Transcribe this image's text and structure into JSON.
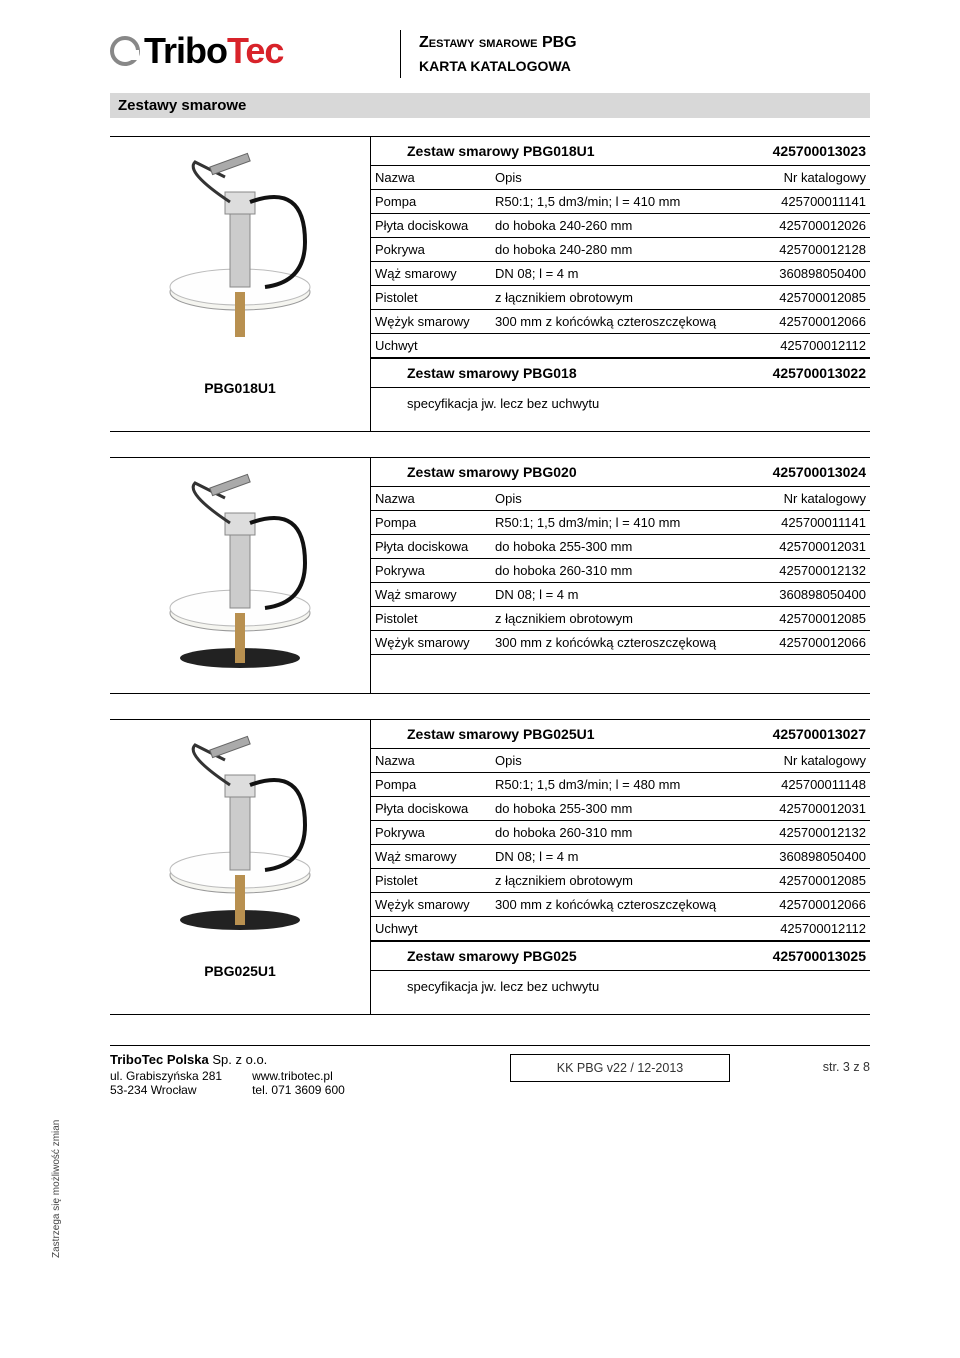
{
  "header": {
    "logo_tribo": "Tribo",
    "logo_tec": "Tec",
    "title_line1": "Zestawy smarowe PBG",
    "title_line2": "KARTA KATALOGOWA"
  },
  "section_title": "Zestawy smarowe",
  "column_headers": {
    "name": "Nazwa",
    "desc": "Opis",
    "catno": "Nr katalogowy"
  },
  "products": [
    {
      "image_label": "PBG018U1",
      "kit_title": "Zestaw smarowy PBG018U1",
      "kit_catno": "425700013023",
      "rows": [
        {
          "name": "Pompa",
          "desc": "R50:1; 1,5 dm3/min; l = 410 mm",
          "catno": "425700011141"
        },
        {
          "name": "Płyta dociskowa",
          "desc": "do hoboka 240-260 mm",
          "catno": "425700012026"
        },
        {
          "name": "Pokrywa",
          "desc": "do hoboka 240-280 mm",
          "catno": "425700012128"
        },
        {
          "name": "Wąż smarowy",
          "desc": "DN 08; l = 4 m",
          "catno": "360898050400"
        },
        {
          "name": "Pistolet",
          "desc": "z łącznikiem obrotowym",
          "catno": "425700012085"
        },
        {
          "name": "Wężyk smarowy",
          "desc": "300 mm z końcówką czteroszczękową",
          "catno": "425700012066"
        },
        {
          "name": "Uchwyt",
          "desc": "",
          "catno": "425700012112"
        }
      ],
      "alt_kit_title": "Zestaw smarowy PBG018",
      "alt_kit_catno": "425700013022",
      "alt_note": "specyfikacja jw. lecz bez uchwytu"
    },
    {
      "image_label": "",
      "kit_title": "Zestaw smarowy PBG020",
      "kit_catno": "425700013024",
      "rows": [
        {
          "name": "Pompa",
          "desc": "R50:1; 1,5 dm3/min; l = 410 mm",
          "catno": "425700011141"
        },
        {
          "name": "Płyta dociskowa",
          "desc": "do hoboka 255-300 mm",
          "catno": "425700012031"
        },
        {
          "name": "Pokrywa",
          "desc": "do hoboka 260-310 mm",
          "catno": "425700012132"
        },
        {
          "name": "Wąż smarowy",
          "desc": "DN 08; l = 4 m",
          "catno": "360898050400"
        },
        {
          "name": "Pistolet",
          "desc": "z łącznikiem obrotowym",
          "catno": "425700012085"
        },
        {
          "name": "Wężyk smarowy",
          "desc": "300 mm z końcówką czteroszczękową",
          "catno": "425700012066"
        }
      ]
    },
    {
      "image_label": "PBG025U1",
      "kit_title": "Zestaw smarowy PBG025U1",
      "kit_catno": "425700013027",
      "rows": [
        {
          "name": "Pompa",
          "desc": "R50:1; 1,5 dm3/min; l = 480 mm",
          "catno": "425700011148"
        },
        {
          "name": "Płyta dociskowa",
          "desc": "do hoboka 255-300 mm",
          "catno": "425700012031"
        },
        {
          "name": "Pokrywa",
          "desc": "do hoboka 260-310 mm",
          "catno": "425700012132"
        },
        {
          "name": "Wąż smarowy",
          "desc": "DN 08; l = 4 m",
          "catno": "360898050400"
        },
        {
          "name": "Pistolet",
          "desc": "z łącznikiem obrotowym",
          "catno": "425700012085"
        },
        {
          "name": "Wężyk smarowy",
          "desc": "300 mm z końcówką czteroszczękową",
          "catno": "425700012066"
        },
        {
          "name": "Uchwyt",
          "desc": "",
          "catno": "425700012112"
        }
      ],
      "alt_kit_title": "Zestaw smarowy PBG025",
      "alt_kit_catno": "425700013025",
      "alt_note": "specyfikacja jw. lecz bez uchwytu"
    }
  ],
  "sidebar_note": "Zastrzega się możliwość zmian",
  "footer": {
    "company_bold": "TriboTec Polska",
    "company_rest": "Sp. z o.o.",
    "addr1": "ul. Grabiszyńska 281",
    "web": "www.tribotec.pl",
    "addr2": "53-234 Wrocław",
    "tel": "tel. 071 3609 600",
    "doc_ref": "KK PBG v22 / 12-2013",
    "page": "str. 3 z 8"
  },
  "style": {
    "accent_red": "#d8232a",
    "gray_bar": "#d8d8d8",
    "border": "#000000"
  }
}
